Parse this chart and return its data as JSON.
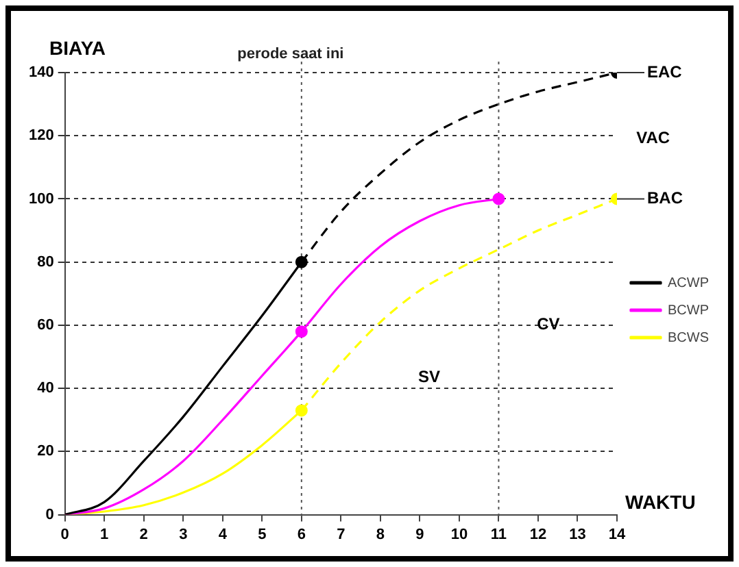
{
  "chart_data": {
    "type": "line",
    "xlabel": "WAKTU",
    "ylabel": "BIAYA",
    "x": [
      0,
      1,
      2,
      3,
      4,
      5,
      6
    ],
    "series": [
      {
        "name": "ACWP",
        "color": "#000000",
        "values": [
          0,
          4,
          17,
          31,
          47,
          63,
          80
        ]
      },
      {
        "name": "BCWP",
        "color": "#ff00ff",
        "x": [
          0,
          1,
          2,
          3,
          4,
          5,
          6,
          7,
          8,
          9,
          10,
          11
        ],
        "values": [
          0,
          2,
          8,
          17,
          30,
          44,
          58,
          73,
          85,
          93,
          98,
          100
        ]
      },
      {
        "name": "BCWS",
        "color": "#ffff00",
        "values": [
          0,
          1,
          3,
          7,
          13,
          22,
          33
        ]
      },
      {
        "color": "#000000",
        "x": [
          6,
          7,
          8,
          9,
          10,
          11,
          12,
          13,
          14
        ],
        "values": [
          80,
          96,
          108,
          118,
          125,
          130,
          134,
          137,
          140
        ],
        "line_style": "dashed"
      },
      {
        "color": "#ffff00",
        "x": [
          6,
          7,
          8,
          9,
          10,
          11,
          12,
          13,
          14
        ],
        "values": [
          33,
          48,
          61,
          71,
          78,
          84,
          90,
          95,
          100
        ],
        "line_style": "dashed"
      },
      {
        "type": "scatter",
        "marker": "circle",
        "x": [
          6,
          6,
          6,
          11,
          14,
          14
        ],
        "values": [
          80,
          58,
          33,
          100,
          140,
          100
        ],
        "colors": [
          "#000000",
          "#ff00ff",
          "#ffff00",
          "#ff00ff",
          "#000000",
          "#ffff00"
        ]
      }
    ],
    "xlim": [
      0,
      14
    ],
    "xticks": [
      0,
      1,
      2,
      3,
      4,
      5,
      6,
      7,
      8,
      9,
      10,
      11,
      12,
      13,
      14
    ],
    "ylim": [
      0,
      140
    ],
    "yticks": [
      0,
      20,
      40,
      60,
      80,
      100,
      120,
      140
    ],
    "grid": "y",
    "legend": "right",
    "marker": "none",
    "line_style": "solid",
    "ref_lines": [
      {
        "axis": "x",
        "value": 6,
        "label": "perode saat ini",
        "line_style": "dotted"
      },
      {
        "axis": "x",
        "value": 11,
        "line_style": "dotted"
      }
    ],
    "annotations": [
      {
        "text": "EAC",
        "x": 14,
        "y": 140
      },
      "VAC",
      {
        "text": "BAC",
        "x": 14,
        "y": 100
      },
      "CV",
      "SV"
    ]
  }
}
